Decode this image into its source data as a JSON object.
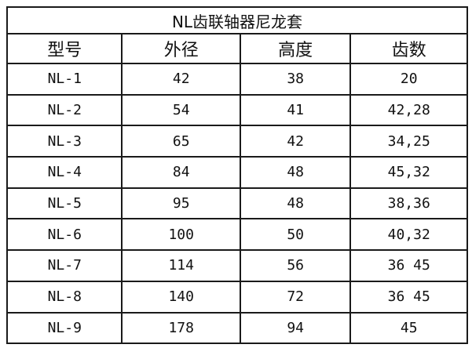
{
  "title": "NL齿联轴器尼龙套",
  "headers": [
    "型号",
    "外径",
    "高度",
    "齿数"
  ],
  "rows": [
    [
      "NL-1",
      "42",
      "38",
      "20"
    ],
    [
      "NL-2",
      "54",
      "41",
      "42,28"
    ],
    [
      "NL-3",
      "65",
      "42",
      "34,25"
    ],
    [
      "NL-4",
      "84",
      "48",
      "45,32"
    ],
    [
      "NL-5",
      "95",
      "48",
      "38,36"
    ],
    [
      "NL-6",
      "100",
      "50",
      "40,32"
    ],
    [
      "NL-7",
      "114",
      "56",
      "36 45"
    ],
    [
      "NL-8",
      "140",
      "72",
      "36 45"
    ],
    [
      "NL-9",
      "178",
      "94",
      "45"
    ]
  ]
}
